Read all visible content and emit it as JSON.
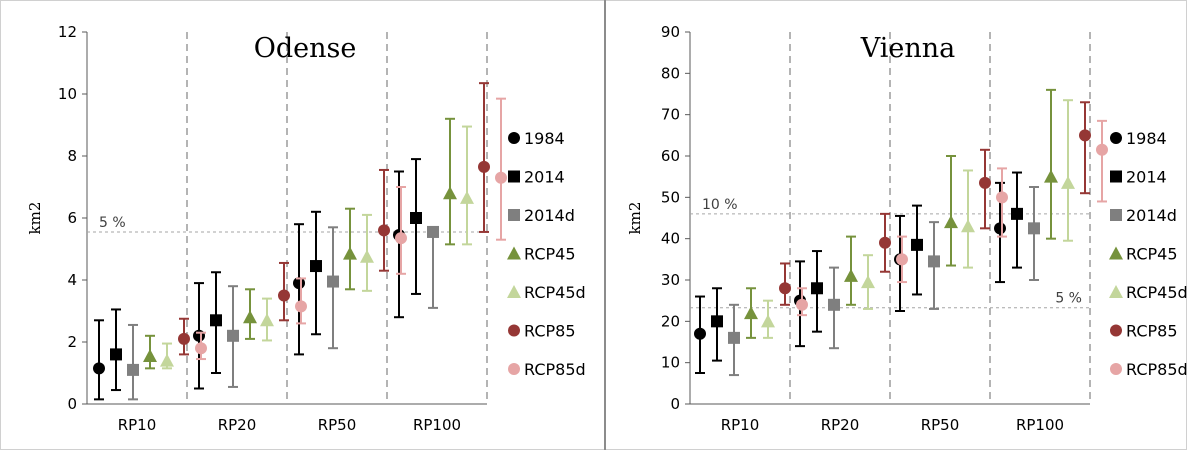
{
  "chart_data": [
    {
      "type": "scatter",
      "title": "Odense",
      "xlabel": "",
      "ylabel": "km2",
      "ylim": [
        0,
        12
      ],
      "yticks": [
        0,
        2,
        4,
        6,
        8,
        10,
        12
      ],
      "categories": [
        "RP10",
        "RP20",
        "RP50",
        "RP100"
      ],
      "grid": "vertical dashed separators between categories",
      "legend_position": "right",
      "threshold_lines": [
        {
          "label": "5 %",
          "value": 5.55,
          "label_side": "left"
        }
      ],
      "series": [
        {
          "name": "1984",
          "marker": "circle",
          "color": "#000000",
          "values": [
            1.15,
            2.2,
            3.9,
            5.45
          ],
          "err_low": [
            0.15,
            0.5,
            1.6,
            2.8
          ],
          "err_high": [
            2.7,
            3.9,
            5.8,
            7.5
          ]
        },
        {
          "name": "2014",
          "marker": "square",
          "color": "#000000",
          "values": [
            1.6,
            2.7,
            4.45,
            6.0
          ],
          "err_low": [
            0.45,
            1.0,
            2.25,
            3.55
          ],
          "err_high": [
            3.05,
            4.25,
            6.2,
            7.9
          ]
        },
        {
          "name": "2014d",
          "marker": "square",
          "color": "#7f7f7f",
          "values": [
            1.1,
            2.2,
            3.95,
            5.55
          ],
          "err_low": [
            0.15,
            0.55,
            1.8,
            3.1
          ],
          "err_high": [
            2.55,
            3.8,
            5.7,
            5.55
          ]
        },
        {
          "name": "RCP45",
          "marker": "triangle",
          "color": "#76923c",
          "values": [
            1.55,
            2.8,
            4.85,
            6.8
          ],
          "err_low": [
            1.15,
            2.1,
            3.7,
            5.15
          ],
          "err_high": [
            2.2,
            3.7,
            6.3,
            9.2
          ]
        },
        {
          "name": "RCP45d",
          "marker": "triangle",
          "color": "#c3d69b",
          "values": [
            1.4,
            2.7,
            4.75,
            6.65
          ],
          "err_low": [
            1.15,
            2.05,
            3.65,
            5.15
          ],
          "err_high": [
            1.95,
            3.4,
            6.1,
            8.95
          ]
        },
        {
          "name": "RCP85",
          "marker": "circle",
          "color": "#953735",
          "values": [
            2.1,
            3.5,
            5.6,
            7.65
          ],
          "err_low": [
            1.6,
            2.7,
            4.3,
            5.55
          ],
          "err_high": [
            2.75,
            4.55,
            7.55,
            10.35
          ]
        },
        {
          "name": "RCP85d",
          "marker": "circle",
          "color": "#e6a5a5",
          "values": [
            1.8,
            3.15,
            5.35,
            7.3
          ],
          "err_low": [
            1.45,
            2.6,
            4.2,
            5.3
          ],
          "err_high": [
            2.3,
            4.05,
            7.0,
            9.85
          ]
        }
      ]
    },
    {
      "type": "scatter",
      "title": "Vienna",
      "xlabel": "",
      "ylabel": "km2",
      "ylim": [
        0,
        90
      ],
      "yticks": [
        0,
        10,
        20,
        30,
        40,
        50,
        60,
        70,
        80,
        90
      ],
      "categories": [
        "RP10",
        "RP20",
        "RP50",
        "RP100"
      ],
      "grid": "vertical dashed separators between categories",
      "legend_position": "right",
      "threshold_lines": [
        {
          "label": "10 %",
          "value": 46,
          "label_side": "left"
        },
        {
          "label": "5 %",
          "value": 23.3,
          "label_side": "right"
        }
      ],
      "series": [
        {
          "name": "1984",
          "marker": "circle",
          "color": "#000000",
          "values": [
            17,
            25,
            35,
            42.5
          ],
          "err_low": [
            7.5,
            14,
            22.5,
            29.5
          ],
          "err_high": [
            26,
            34.5,
            45.5,
            53.5
          ]
        },
        {
          "name": "2014",
          "marker": "square",
          "color": "#000000",
          "values": [
            20,
            28,
            38.5,
            46
          ],
          "err_low": [
            10.5,
            17.5,
            26.5,
            33
          ],
          "err_high": [
            28,
            37,
            48,
            56
          ]
        },
        {
          "name": "2014d",
          "marker": "square",
          "color": "#7f7f7f",
          "values": [
            16,
            24,
            34.5,
            42.5
          ],
          "err_low": [
            7,
            13.5,
            23,
            30
          ],
          "err_high": [
            24,
            33,
            44,
            52.5
          ]
        },
        {
          "name": "RCP45",
          "marker": "triangle",
          "color": "#76923c",
          "values": [
            22,
            31,
            44,
            55
          ],
          "err_low": [
            16,
            24,
            33.5,
            40
          ],
          "err_high": [
            28,
            40.5,
            60,
            76
          ]
        },
        {
          "name": "RCP45d",
          "marker": "triangle",
          "color": "#c3d69b",
          "values": [
            20,
            29.5,
            43,
            53.5
          ],
          "err_low": [
            16,
            23,
            33,
            39.5
          ],
          "err_high": [
            25,
            36,
            56.5,
            73.5
          ]
        },
        {
          "name": "RCP85",
          "marker": "circle",
          "color": "#953735",
          "values": [
            28,
            39,
            53.5,
            65
          ],
          "err_low": [
            24,
            32,
            42.5,
            51
          ],
          "err_high": [
            34,
            46,
            61.5,
            73
          ]
        },
        {
          "name": "RCP85d",
          "marker": "circle",
          "color": "#e6a5a5",
          "values": [
            24,
            35,
            50,
            61.5
          ],
          "err_low": [
            21.5,
            29.5,
            40.5,
            49
          ],
          "err_high": [
            28,
            40.5,
            57,
            68.5
          ]
        }
      ]
    }
  ]
}
